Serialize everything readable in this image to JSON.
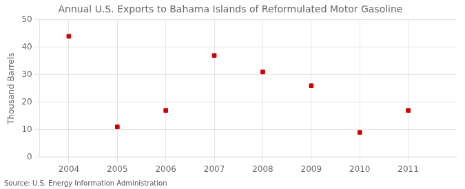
{
  "chart_data": {
    "type": "scatter",
    "title": "Annual U.S. Exports to Bahama Islands of Reformulated Motor Gasoline",
    "ylabel": "Thousand Barrels",
    "annotation": "Source: U.S. Energy Information Administration",
    "x": [
      2004,
      2005,
      2006,
      2007,
      2008,
      2009,
      2010,
      2011
    ],
    "values": [
      44,
      11,
      17,
      37,
      31,
      26,
      9,
      17
    ],
    "color": "#cc0000",
    "marker": "square",
    "xlim": [
      2003.4,
      2012.0
    ],
    "xticks": [
      2004,
      2005,
      2006,
      2007,
      2008,
      2009,
      2010,
      2011
    ],
    "ylim": [
      0,
      50
    ],
    "yticks": [
      0,
      10,
      20,
      30,
      40,
      50
    ],
    "grid": true
  }
}
